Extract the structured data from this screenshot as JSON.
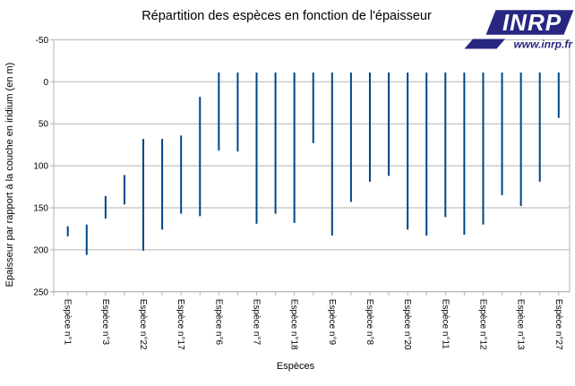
{
  "window": {
    "background": "#ffffff"
  },
  "logo": {
    "text": "INRP",
    "url_text": "www.inrp.fr",
    "navy": "#272782"
  },
  "colors": {
    "bar": "#004586",
    "grid": "#b3b3b3",
    "axis": "#b3b3b3",
    "text": "#000000"
  },
  "chart_data": {
    "type": "bar",
    "subtype": "floating-range-columns",
    "title": "Répartition des espèces en fonction de l'épaisseur",
    "xlabel": "Espèces",
    "ylabel": "Epaisseur par rapport à la couche en iridium (en m)",
    "y_axis": {
      "min": -50,
      "max": 250,
      "step": 50,
      "inverted": true,
      "ticks": [
        -50,
        0,
        50,
        100,
        150,
        200,
        250
      ]
    },
    "grid": true,
    "legend": "none",
    "x_label_shown_every": 2,
    "bar_color": "#004586",
    "series": [
      {
        "label": "Espèce n°1",
        "from": 172,
        "to": 184
      },
      {
        "label": "",
        "from": 170,
        "to": 206
      },
      {
        "label": "Espèce n°3",
        "from": 136,
        "to": 163
      },
      {
        "label": "",
        "from": 111,
        "to": 146
      },
      {
        "label": "Espèce n°22",
        "from": 68,
        "to": 201
      },
      {
        "label": "",
        "from": 68,
        "to": 176
      },
      {
        "label": "Espèce n°17",
        "from": 64,
        "to": 157
      },
      {
        "label": "",
        "from": 18,
        "to": 160
      },
      {
        "label": "Espèce n°6",
        "from": -11,
        "to": 82
      },
      {
        "label": "",
        "from": -11,
        "to": 83
      },
      {
        "label": "Espèce n°7",
        "from": -11,
        "to": 169
      },
      {
        "label": "",
        "from": -11,
        "to": 157
      },
      {
        "label": "Espèce n°18",
        "from": -11,
        "to": 168
      },
      {
        "label": "",
        "from": -11,
        "to": 73
      },
      {
        "label": "Espèce n°9",
        "from": -11,
        "to": 183
      },
      {
        "label": "",
        "from": -11,
        "to": 143
      },
      {
        "label": "Espèce n°8",
        "from": -11,
        "to": 119
      },
      {
        "label": "",
        "from": -11,
        "to": 112
      },
      {
        "label": "Espèce n°20",
        "from": -11,
        "to": 176
      },
      {
        "label": "",
        "from": -11,
        "to": 183
      },
      {
        "label": "Espèce n°11",
        "from": -11,
        "to": 161
      },
      {
        "label": "",
        "from": -11,
        "to": 182
      },
      {
        "label": "Espèce n°12",
        "from": -11,
        "to": 170
      },
      {
        "label": "",
        "from": -11,
        "to": 135
      },
      {
        "label": "Espèce n°13",
        "from": -11,
        "to": 148
      },
      {
        "label": "",
        "from": -11,
        "to": 119
      },
      {
        "label": "Espèce n°27",
        "from": -11,
        "to": 43
      }
    ]
  }
}
